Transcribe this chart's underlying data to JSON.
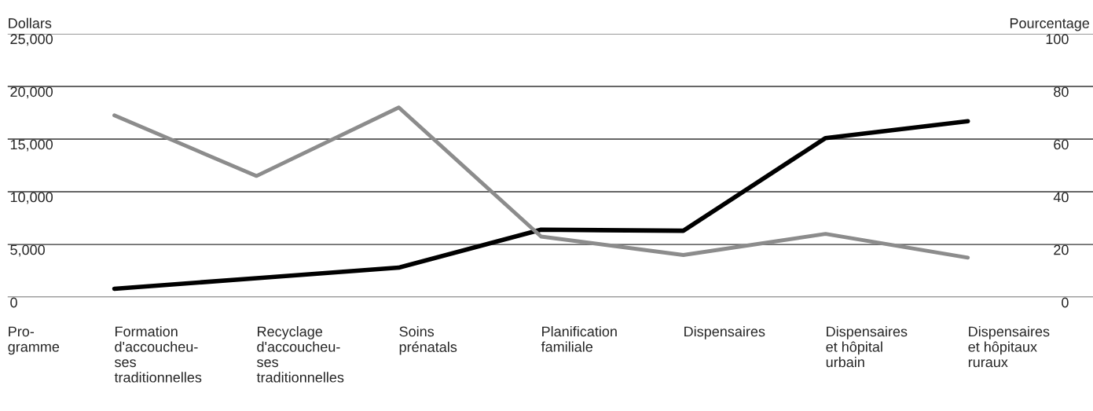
{
  "chart_data": {
    "type": "line",
    "ylabel": "Dollars",
    "y2label": "Pourcentage",
    "xlabel": "Pro-\ngramme",
    "categories": [
      "Formation\nd'accoucheu-\nses\ntraditionnelles",
      "Recyclage\nd'accoucheu-\nses\ntraditionnelles",
      "Soins\nprénatals",
      "Planification\nfamiliale",
      "Dispensaires",
      "Dispensaires\net hôpital\nurbain",
      "Dispensaires\net hôpitaux\nruraux"
    ],
    "series": [
      {
        "color": "#000000",
        "values": [
          800,
          1800,
          2800,
          6400,
          6300,
          15100,
          16700
        ]
      },
      {
        "color": "#8c8c8c",
        "axis": "y2",
        "values": [
          69,
          46,
          72,
          23,
          16,
          24,
          15
        ]
      }
    ],
    "ylim": [
      0,
      25000
    ],
    "yticks": [
      {
        "value": 0,
        "label": "0"
      },
      {
        "value": 5000,
        "label": "5,000"
      },
      {
        "value": 10000,
        "label": "10,000"
      },
      {
        "value": 15000,
        "label": "15,000"
      },
      {
        "value": 20000,
        "label": "20,000"
      },
      {
        "value": 25000,
        "label": "25,000"
      }
    ],
    "y2lim": [
      0,
      100
    ],
    "y2ticks": [
      0,
      20,
      40,
      60,
      80,
      100
    ],
    "grid": "y",
    "legend": false,
    "marker": "none",
    "line_style": "solid"
  }
}
